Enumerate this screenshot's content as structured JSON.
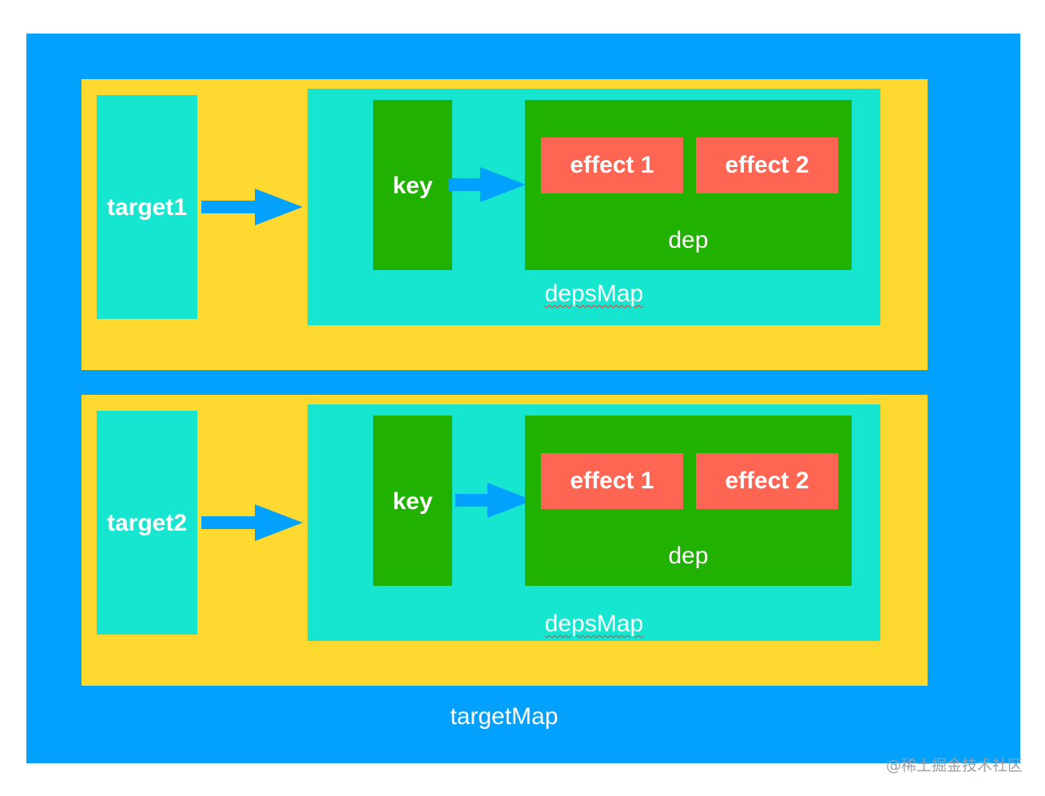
{
  "colors": {
    "target_map": "#02A1FE",
    "row": "#FFD930",
    "cyan_box": "#16E6CF",
    "green_box": "#21B100",
    "effect_box": "#FE6552",
    "arrow": "#02A1FE"
  },
  "target_map_label": "targetMap",
  "rows": [
    {
      "target": "target1",
      "key": "key",
      "effects": [
        "effect 1",
        "effect 2"
      ],
      "dep": "dep",
      "deps_map": "depsMap"
    },
    {
      "target": "target2",
      "key": "key",
      "effects": [
        "effect 1",
        "effect 2"
      ],
      "dep": "dep",
      "deps_map": "depsMap"
    }
  ],
  "watermark": "@稀土掘金技术社区"
}
